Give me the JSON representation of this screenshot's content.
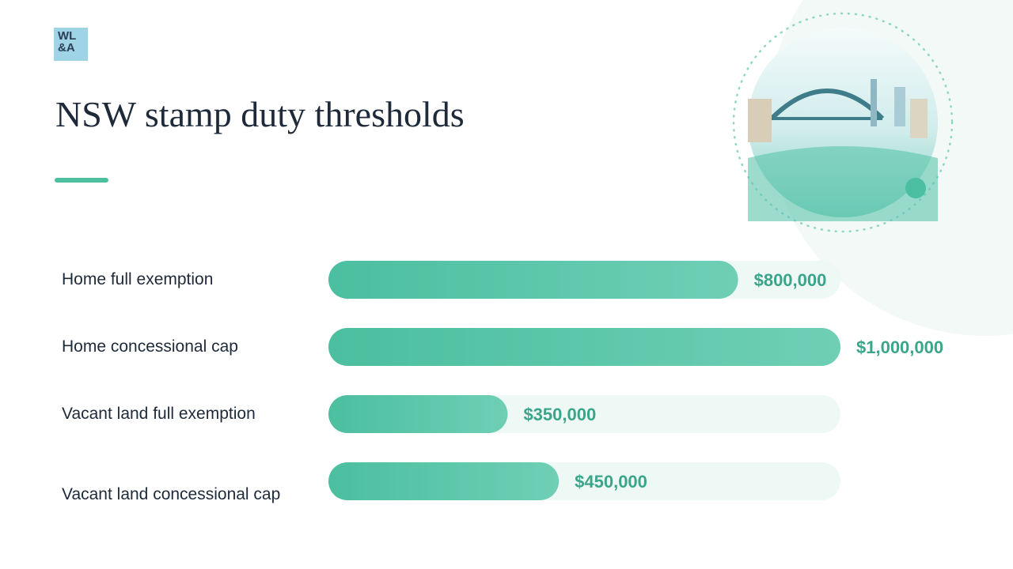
{
  "logo": [
    "WL",
    "&A"
  ],
  "chart_data": {
    "type": "hbar",
    "title": "NSW stamp duty thresholds",
    "categories": [
      "Home full exemption",
      "Home concessional cap",
      "Vacant land full exemption",
      "Vacant land concessional cap"
    ],
    "values": [
      800000,
      1000000,
      350000,
      450000
    ],
    "value_labels": [
      "$800,000",
      "$1,000,000",
      "$350,000",
      "$450,000"
    ],
    "color": "#4bbf9f",
    "xlim": [
      0,
      1000000
    ]
  }
}
